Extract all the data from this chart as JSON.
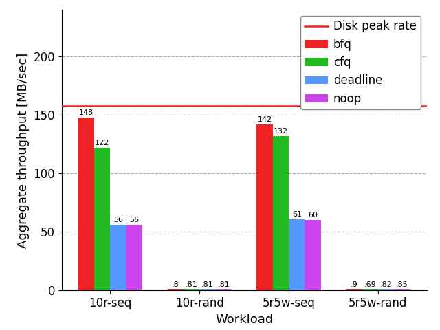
{
  "categories": [
    "10r-seq",
    "10r-rand",
    "5r5w-seq",
    "5r5w-rand"
  ],
  "series": {
    "bfq": [
      148,
      0.8,
      142,
      0.9
    ],
    "cfq": [
      122,
      0.81,
      132,
      0.69
    ],
    "deadline": [
      56,
      0.81,
      61,
      0.82
    ],
    "noop": [
      56,
      0.81,
      60,
      0.85
    ]
  },
  "colors": {
    "bfq": "#ee2222",
    "cfq": "#22bb22",
    "deadline": "#5599ff",
    "noop": "#cc44ee"
  },
  "disk_peak_rate": 158,
  "disk_peak_color": "#ee2222",
  "ylabel": "Aggregate throughput [MB/sec]",
  "xlabel": "Workload",
  "ylim": [
    0,
    240
  ],
  "yticks": [
    0,
    50,
    100,
    150,
    200
  ],
  "bar_width": 0.18,
  "label_fontsize": 13,
  "tick_fontsize": 12,
  "annot_fontsize": 8,
  "legend_fontsize": 12,
  "background_color": "#ffffff",
  "grid_color": "#aaaaaa"
}
